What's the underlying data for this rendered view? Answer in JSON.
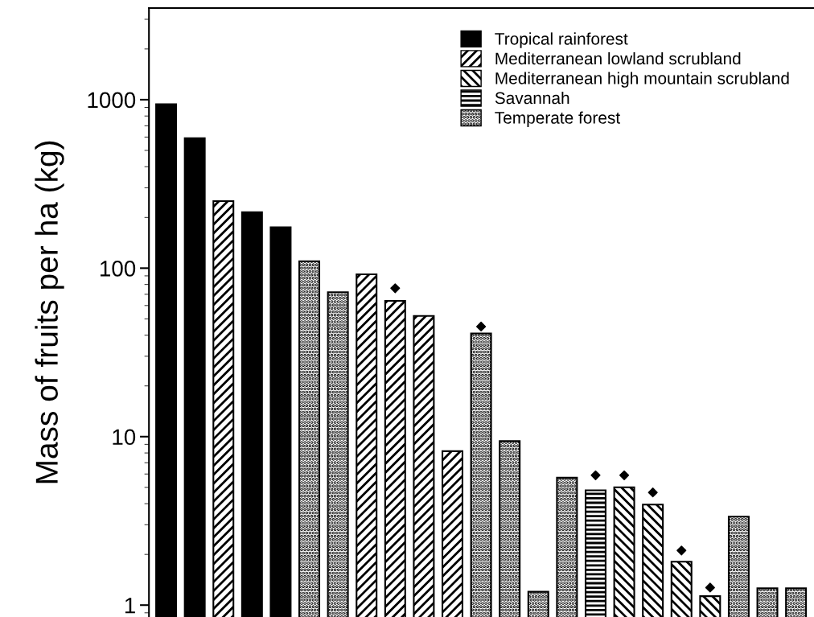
{
  "chart_data": {
    "type": "bar",
    "ylabel": "Mass of fruits per ha (kg)",
    "log": "y",
    "categories": [
      null,
      null,
      null,
      null,
      null,
      null,
      null,
      null,
      null,
      null,
      null,
      null,
      null,
      null,
      null,
      null,
      null,
      null,
      null,
      null,
      null,
      null,
      null
    ],
    "ylim": [
      0.85,
      3500
    ],
    "yticks": [
      1,
      10,
      100,
      1000
    ],
    "legend": "top right",
    "grid": false,
    "series": [
      {
        "name": "Tropical rainforest",
        "color": "#000000",
        "values": [
          940,
          590,
          null,
          215,
          175,
          null,
          null,
          null,
          null,
          null,
          null,
          null,
          null,
          null,
          null,
          null,
          null,
          null,
          null,
          null,
          null,
          null,
          null
        ]
      },
      {
        "name": "Mediterranean lowland scrubland",
        "color": "#000000",
        "values": [
          null,
          null,
          250,
          null,
          null,
          null,
          null,
          92,
          64,
          52,
          8.2,
          null,
          null,
          null,
          null,
          null,
          null,
          null,
          null,
          null,
          null,
          null,
          null
        ]
      },
      {
        "name": "Mediterranean high mountain scrubland",
        "color": "#000000",
        "values": [
          null,
          null,
          null,
          null,
          null,
          null,
          null,
          null,
          null,
          null,
          null,
          null,
          null,
          null,
          null,
          null,
          5.0,
          3.95,
          1.81,
          1.13,
          null,
          null,
          null
        ]
      },
      {
        "name": "Savannah",
        "color": "#000000",
        "values": [
          null,
          null,
          null,
          null,
          null,
          null,
          null,
          null,
          null,
          null,
          null,
          null,
          null,
          null,
          null,
          4.8,
          null,
          null,
          null,
          null,
          null,
          null,
          null
        ]
      },
      {
        "name": "Temperate forest",
        "color": "#000000",
        "values": [
          null,
          null,
          null,
          null,
          null,
          110,
          72,
          null,
          null,
          null,
          null,
          41,
          9.4,
          1.2,
          5.7,
          null,
          null,
          null,
          null,
          null,
          3.35,
          1.26,
          1.26
        ]
      },
      {
        "type": "scatter",
        "marker": "diamond",
        "color": "#000000",
        "values": [
          null,
          null,
          null,
          null,
          null,
          null,
          null,
          null,
          76,
          null,
          null,
          45,
          null,
          null,
          null,
          5.9,
          5.9,
          4.66,
          2.11,
          1.27,
          null,
          null,
          null
        ]
      }
    ]
  }
}
